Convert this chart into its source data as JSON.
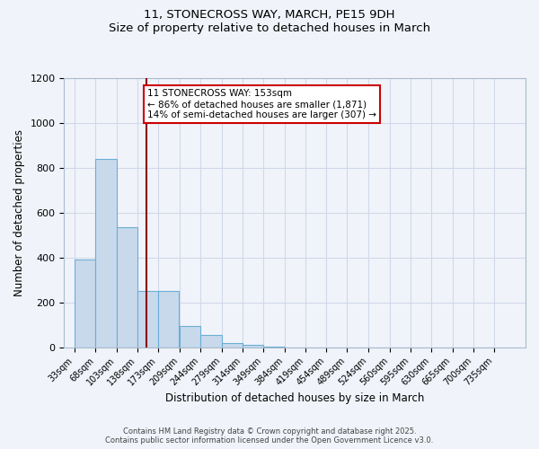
{
  "title_line1": "11, STONECROSS WAY, MARCH, PE15 9DH",
  "title_line2": "Size of property relative to detached houses in March",
  "xlabel": "Distribution of detached houses by size in March",
  "ylabel": "Number of detached properties",
  "bar_heights": [
    390,
    840,
    535,
    250,
    250,
    95,
    55,
    20,
    10,
    5,
    0,
    0,
    0,
    0,
    0,
    0,
    0,
    0,
    0,
    0
  ],
  "bin_labels": [
    "33sqm",
    "68sqm",
    "103sqm",
    "138sqm",
    "173sqm",
    "209sqm",
    "244sqm",
    "279sqm",
    "314sqm",
    "349sqm",
    "384sqm",
    "419sqm",
    "454sqm",
    "489sqm",
    "524sqm",
    "560sqm",
    "595sqm",
    "630sqm",
    "665sqm",
    "700sqm",
    "735sqm"
  ],
  "bar_color_face": "#c9d9ec",
  "bar_color_edge": "#6baed6",
  "vline_x": 153,
  "vline_color": "#8b0000",
  "annotation_title": "11 STONECROSS WAY: 153sqm",
  "annotation_line1": "← 86% of detached houses are smaller (1,871)",
  "annotation_line2": "14% of semi-detached houses are larger (307) →",
  "annotation_box_color": "#ffffff",
  "annotation_box_edge": "#cc0000",
  "ylim": [
    0,
    1200
  ],
  "yticks": [
    0,
    200,
    400,
    600,
    800,
    1000,
    1200
  ],
  "grid_color": "#d0d8e8",
  "bg_color": "#f0f4fa",
  "footnote1": "Contains HM Land Registry data © Crown copyright and database right 2025.",
  "footnote2": "Contains public sector information licensed under the Open Government Licence v3.0.",
  "bin_edges": [
    33,
    68,
    103,
    138,
    173,
    209,
    244,
    279,
    314,
    349,
    384,
    419,
    454,
    489,
    524,
    560,
    595,
    630,
    665,
    700,
    735
  ]
}
